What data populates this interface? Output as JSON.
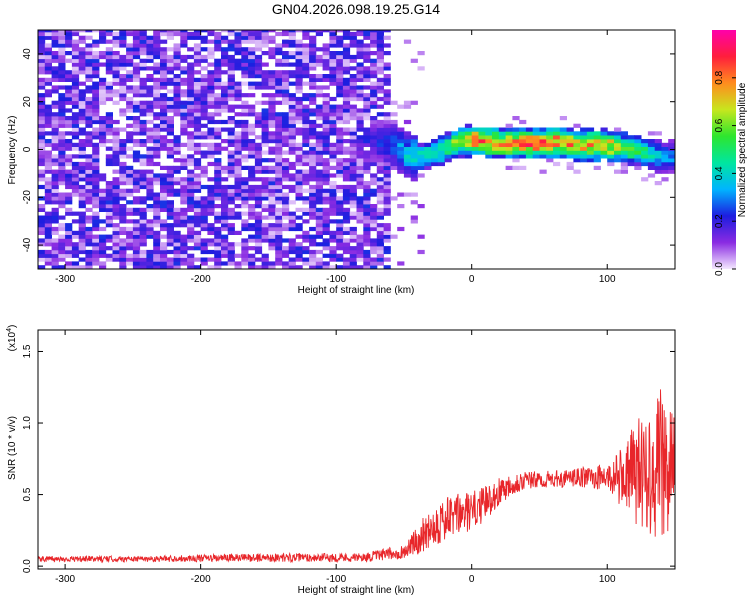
{
  "title": "GN04.2026.098.19.25.G14",
  "chart_data": [
    {
      "type": "heatmap",
      "xlabel": "Height of straight line (km)",
      "ylabel": "Frequency (Hz)",
      "xlim": [
        -320,
        150
      ],
      "ylim": [
        -50,
        50
      ],
      "xticks": [
        -300,
        -200,
        -100,
        0,
        100
      ],
      "yticks": [
        -40,
        -20,
        0,
        20,
        40
      ],
      "colorbar": {
        "label": "Normalized spectral amplitude",
        "range": [
          0,
          1
        ],
        "ticks": [
          "0.0",
          "0.2",
          "0.4",
          "0.6",
          "0.8"
        ],
        "colors": [
          "#f4e8ff",
          "#8a2be2",
          "#1d1de0",
          "#00b4ff",
          "#00e6a0",
          "#2ee62e",
          "#c8e61e",
          "#ff8c1e",
          "#ff1e3c",
          "#ff00aa"
        ]
      },
      "noise_region_x": [
        -320,
        -62
      ],
      "signal_band": {
        "x": [
          -75,
          -60,
          -50,
          -40,
          -30,
          -20,
          -10,
          0,
          20,
          40,
          60,
          80,
          100,
          120,
          140,
          150
        ],
        "center_freq": [
          3,
          1,
          -3,
          -4,
          -2,
          0,
          3,
          3,
          2,
          2,
          2,
          1,
          1,
          -1,
          -4,
          -3
        ],
        "peak_amplitude": [
          0.2,
          0.3,
          0.4,
          0.45,
          0.45,
          0.55,
          0.7,
          0.85,
          0.8,
          0.85,
          0.85,
          0.8,
          0.75,
          0.55,
          0.35,
          0.3
        ]
      }
    },
    {
      "type": "line",
      "xlabel": "Height of straight line (km)",
      "ylabel": "SNR (10 * v/v)",
      "y_multiplier": "(x10",
      "y_multiplier_exp": "4",
      "y_multiplier_close": ")",
      "xlim": [
        -320,
        150
      ],
      "ylim": [
        -0.02,
        1.65
      ],
      "xticks": [
        -300,
        -200,
        -100,
        0,
        100
      ],
      "yticks": [
        "0.0",
        "0.5",
        "1.0",
        "1.5"
      ],
      "series": [
        {
          "color": "#e8262a",
          "x": [
            -320,
            -250,
            -150,
            -80,
            -50,
            -40,
            -30,
            -20,
            -10,
            0,
            10,
            20,
            30,
            40,
            50,
            60,
            70,
            80,
            90,
            100,
            110,
            120,
            130,
            140,
            150
          ],
          "y_mean": [
            0.05,
            0.05,
            0.06,
            0.06,
            0.1,
            0.18,
            0.28,
            0.32,
            0.36,
            0.38,
            0.44,
            0.52,
            0.58,
            0.6,
            0.6,
            0.61,
            0.61,
            0.62,
            0.62,
            0.62,
            0.62,
            0.65,
            0.68,
            0.7,
            0.7
          ],
          "y_spread": [
            0.02,
            0.02,
            0.03,
            0.03,
            0.05,
            0.1,
            0.15,
            0.16,
            0.15,
            0.14,
            0.12,
            0.1,
            0.08,
            0.07,
            0.06,
            0.06,
            0.06,
            0.07,
            0.08,
            0.1,
            0.2,
            0.35,
            0.45,
            0.55,
            0.4
          ]
        }
      ]
    }
  ]
}
